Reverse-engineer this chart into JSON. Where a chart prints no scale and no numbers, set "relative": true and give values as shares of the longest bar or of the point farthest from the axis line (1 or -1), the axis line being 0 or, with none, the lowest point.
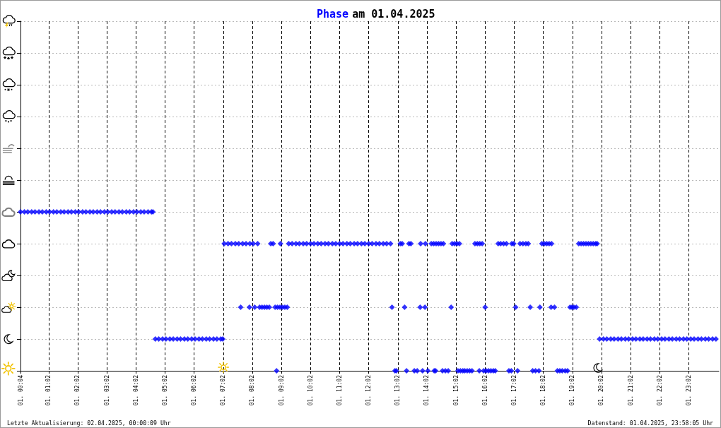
{
  "chart_data": {
    "type": "scatter",
    "title": "am 01.04.2025",
    "relative": true,
    "marker": "diamond",
    "grid": true,
    "tick_labels": "x",
    "xlim": [
      "2025-04-01T00:04",
      "2025-04-02T00:04"
    ],
    "xticks": [
      {
        "value": "2025-04-01T00:04",
        "label": "01. 00:04"
      },
      {
        "value": "2025-04-01T01:02",
        "label": "01. 01:02"
      },
      {
        "value": "2025-04-01T02:02",
        "label": "01. 02:02"
      },
      {
        "value": "2025-04-01T03:02",
        "label": "01. 03:02"
      },
      {
        "value": "2025-04-01T04:02",
        "label": "01. 04:02"
      },
      {
        "value": "2025-04-01T05:02",
        "label": "01. 05:02"
      },
      {
        "value": "2025-04-01T06:02",
        "label": "01. 06:02"
      },
      {
        "value": "2025-04-01T07:02",
        "label": "01. 07:02"
      },
      {
        "value": "2025-04-01T08:02",
        "label": "01. 08:02"
      },
      {
        "value": "2025-04-01T09:02",
        "label": "01. 09:02"
      },
      {
        "value": "2025-04-01T10:02",
        "label": "01. 10:02"
      },
      {
        "value": "2025-04-01T11:02",
        "label": "01. 11:02"
      },
      {
        "value": "2025-04-01T12:02",
        "label": "01. 12:02"
      },
      {
        "value": "2025-04-01T13:02",
        "label": "01. 13:02"
      },
      {
        "value": "2025-04-01T14:02",
        "label": "01. 14:02"
      },
      {
        "value": "2025-04-01T15:02",
        "label": "01. 15:02"
      },
      {
        "value": "2025-04-01T16:02",
        "label": "01. 16:02"
      },
      {
        "value": "2025-04-01T17:02",
        "label": "01. 17:02"
      },
      {
        "value": "2025-04-01T18:02",
        "label": "01. 18:02"
      },
      {
        "value": "2025-04-01T19:02",
        "label": "01. 19:02"
      },
      {
        "value": "2025-04-01T20:02",
        "label": "01. 20:02"
      },
      {
        "value": "2025-04-01T21:02",
        "label": "01. 21:02"
      },
      {
        "value": "2025-04-01T22:02",
        "label": "01. 22:02"
      },
      {
        "value": "2025-04-01T23:02",
        "label": "01. 23:02"
      }
    ],
    "x": [
      "2025-04-01T00:04",
      "2025-04-01T00:12",
      "2025-04-01T00:19",
      "2025-04-01T00:27",
      "2025-04-01T00:34",
      "2025-04-01T00:42",
      "2025-04-01T00:49",
      "2025-04-01T00:57",
      "2025-04-01T01:04",
      "2025-04-01T01:12",
      "2025-04-01T01:19",
      "2025-04-01T01:27",
      "2025-04-01T01:34",
      "2025-04-01T01:42",
      "2025-04-01T01:49",
      "2025-04-01T01:57",
      "2025-04-01T02:04",
      "2025-04-01T02:12",
      "2025-04-01T02:19",
      "2025-04-01T02:27",
      "2025-04-01T02:34",
      "2025-04-01T02:42",
      "2025-04-01T02:49",
      "2025-04-01T02:57",
      "2025-04-01T03:04",
      "2025-04-01T03:12",
      "2025-04-01T03:19",
      "2025-04-01T03:27",
      "2025-04-01T03:34",
      "2025-04-01T03:42",
      "2025-04-01T03:49",
      "2025-04-01T03:57",
      "2025-04-01T04:04",
      "2025-04-01T04:12",
      "2025-04-01T04:19",
      "2025-04-01T04:27",
      "2025-04-01T04:34",
      "2025-04-01T04:37",
      "2025-04-01T04:42",
      "2025-04-01T04:49",
      "2025-04-01T04:57",
      "2025-04-01T05:04",
      "2025-04-01T05:12",
      "2025-04-01T05:19",
      "2025-04-01T05:27",
      "2025-04-01T05:34",
      "2025-04-01T05:42",
      "2025-04-01T05:49",
      "2025-04-01T05:57",
      "2025-04-01T06:04",
      "2025-04-01T06:12",
      "2025-04-01T06:19",
      "2025-04-01T06:27",
      "2025-04-01T06:34",
      "2025-04-01T06:42",
      "2025-04-01T06:49",
      "2025-04-01T06:57",
      "2025-04-01T07:01",
      "2025-04-01T19:58",
      "2025-04-01T20:06",
      "2025-04-01T20:13",
      "2025-04-01T20:21",
      "2025-04-01T20:28",
      "2025-04-01T20:36",
      "2025-04-01T20:43",
      "2025-04-01T20:51",
      "2025-04-01T20:58",
      "2025-04-01T21:06",
      "2025-04-01T21:13",
      "2025-04-01T21:21",
      "2025-04-01T21:28",
      "2025-04-01T21:36",
      "2025-04-01T21:43",
      "2025-04-01T21:51",
      "2025-04-01T21:58",
      "2025-04-01T22:06",
      "2025-04-01T22:13",
      "2025-04-01T22:21",
      "2025-04-01T22:28",
      "2025-04-01T22:36",
      "2025-04-01T22:43",
      "2025-04-01T22:51",
      "2025-04-01T22:58",
      "2025-04-01T23:06",
      "2025-04-01T23:13",
      "2025-04-01T23:21",
      "2025-04-01T23:28",
      "2025-04-01T23:36",
      "2025-04-01T23:43",
      "2025-04-01T23:51",
      "2025-04-01T23:58",
      "2025-04-01T07:04",
      "2025-04-01T07:12",
      "2025-04-01T07:19",
      "2025-04-01T07:27",
      "2025-04-01T07:34",
      "2025-04-01T07:42",
      "2025-04-01T07:49",
      "2025-04-01T07:57",
      "2025-04-01T08:04",
      "2025-04-01T08:13",
      "2025-04-01T08:40",
      "2025-04-01T08:45",
      "2025-04-01T09:00",
      "2025-04-01T09:17",
      "2025-04-01T09:24",
      "2025-04-01T09:32",
      "2025-04-01T09:39",
      "2025-04-01T09:47",
      "2025-04-01T09:54",
      "2025-04-01T10:02",
      "2025-04-01T10:09",
      "2025-04-01T10:17",
      "2025-04-01T10:24",
      "2025-04-01T10:32",
      "2025-04-01T10:39",
      "2025-04-01T10:47",
      "2025-04-01T10:54",
      "2025-04-01T11:02",
      "2025-04-01T11:09",
      "2025-04-01T11:17",
      "2025-04-01T11:24",
      "2025-04-01T11:32",
      "2025-04-01T11:39",
      "2025-04-01T11:47",
      "2025-04-01T11:54",
      "2025-04-01T12:02",
      "2025-04-01T12:09",
      "2025-04-01T12:17",
      "2025-04-01T12:24",
      "2025-04-01T12:32",
      "2025-04-01T12:39",
      "2025-04-01T12:47",
      "2025-04-01T13:07",
      "2025-04-01T13:11",
      "2025-04-01T13:25",
      "2025-04-01T13:29",
      "2025-04-01T13:49",
      "2025-04-01T13:59",
      "2025-04-01T14:11",
      "2025-04-01T14:16",
      "2025-04-01T14:21",
      "2025-04-01T14:26",
      "2025-04-01T14:31",
      "2025-04-01T14:36",
      "2025-04-01T14:54",
      "2025-04-01T14:59",
      "2025-04-01T15:04",
      "2025-04-01T15:09",
      "2025-04-01T15:41",
      "2025-04-01T15:46",
      "2025-04-01T15:51",
      "2025-04-01T15:56",
      "2025-04-01T16:29",
      "2025-04-01T16:34",
      "2025-04-01T16:40",
      "2025-04-01T16:46",
      "2025-04-01T16:57",
      "2025-04-01T17:01",
      "2025-04-01T17:14",
      "2025-04-01T17:20",
      "2025-04-01T17:26",
      "2025-04-01T17:31",
      "2025-04-01T17:59",
      "2025-04-01T18:04",
      "2025-04-01T18:09",
      "2025-04-01T18:14",
      "2025-04-01T18:19",
      "2025-04-01T19:15",
      "2025-04-01T19:20",
      "2025-04-01T19:25",
      "2025-04-01T19:30",
      "2025-04-01T19:35",
      "2025-04-01T19:40",
      "2025-04-01T19:45",
      "2025-04-01T19:50",
      "2025-04-01T19:53",
      "2025-04-01T07:38",
      "2025-04-01T07:56",
      "2025-04-01T08:07",
      "2025-04-01T08:17",
      "2025-04-01T08:22",
      "2025-04-01T08:27",
      "2025-04-01T08:32",
      "2025-04-01T08:37",
      "2025-04-01T08:49",
      "2025-04-01T08:54",
      "2025-04-01T08:59",
      "2025-04-01T09:04",
      "2025-04-01T09:09",
      "2025-04-01T09:14",
      "2025-04-01T12:50",
      "2025-04-01T13:16",
      "2025-04-01T13:48",
      "2025-04-01T13:58",
      "2025-04-01T14:52",
      "2025-04-01T16:02",
      "2025-04-01T17:05",
      "2025-04-01T17:35",
      "2025-04-01T17:55",
      "2025-04-01T18:18",
      "2025-04-01T18:25",
      "2025-04-01T18:57",
      "2025-04-01T19:01",
      "2025-04-01T19:05",
      "2025-04-01T19:10",
      "2025-04-01T08:52",
      "2025-04-01T12:56",
      "2025-04-01T12:59",
      "2025-04-01T13:20",
      "2025-04-01T13:36",
      "2025-04-01T13:42",
      "2025-04-01T13:53",
      "2025-04-01T14:04",
      "2025-04-01T14:17",
      "2025-04-01T14:20",
      "2025-04-01T14:34",
      "2025-04-01T14:40",
      "2025-04-01T14:46",
      "2025-04-01T15:06",
      "2025-04-01T15:11",
      "2025-04-01T15:16",
      "2025-04-01T15:20",
      "2025-04-01T15:25",
      "2025-04-01T15:30",
      "2025-04-01T15:35",
      "2025-04-01T15:50",
      "2025-04-01T15:59",
      "2025-04-01T16:04",
      "2025-04-01T16:09",
      "2025-04-01T16:14",
      "2025-04-01T16:19",
      "2025-04-01T16:23",
      "2025-04-01T16:51",
      "2025-04-01T16:56",
      "2025-04-01T17:09",
      "2025-04-01T17:40",
      "2025-04-01T17:46",
      "2025-04-01T17:53",
      "2025-04-01T18:31",
      "2025-04-01T18:36",
      "2025-04-01T18:41",
      "2025-04-01T18:47",
      "2025-04-01T18:52"
    ],
    "series": [
      {
        "name": "Phase",
        "color": "#0000ff",
        "values": [
          1,
          1,
          1,
          1,
          1,
          1,
          1,
          1,
          1,
          1,
          1,
          1,
          1,
          1,
          1,
          1,
          1,
          1,
          1,
          1,
          1,
          1,
          1,
          1,
          1,
          1,
          1,
          1,
          1,
          1,
          1,
          1,
          1,
          1,
          1,
          1,
          1,
          1,
          0.2,
          0.2,
          0.2,
          0.2,
          0.2,
          0.2,
          0.2,
          0.2,
          0.2,
          0.2,
          0.2,
          0.2,
          0.2,
          0.2,
          0.2,
          0.2,
          0.2,
          0.2,
          0.2,
          0.2,
          0.2,
          0.2,
          0.2,
          0.2,
          0.2,
          0.2,
          0.2,
          0.2,
          0.2,
          0.2,
          0.2,
          0.2,
          0.2,
          0.2,
          0.2,
          0.2,
          0.2,
          0.2,
          0.2,
          0.2,
          0.2,
          0.2,
          0.2,
          0.2,
          0.2,
          0.2,
          0.2,
          0.2,
          0.2,
          0.2,
          0.2,
          0.2,
          0.2,
          0.8,
          0.8,
          0.8,
          0.8,
          0.8,
          0.8,
          0.8,
          0.8,
          0.8,
          0.8,
          0.8,
          0.8,
          0.8,
          0.8,
          0.8,
          0.8,
          0.8,
          0.8,
          0.8,
          0.8,
          0.8,
          0.8,
          0.8,
          0.8,
          0.8,
          0.8,
          0.8,
          0.8,
          0.8,
          0.8,
          0.8,
          0.8,
          0.8,
          0.8,
          0.8,
          0.8,
          0.8,
          0.8,
          0.8,
          0.8,
          0.8,
          0.8,
          0.8,
          0.8,
          0.8,
          0.8,
          0.8,
          0.8,
          0.8,
          0.8,
          0.8,
          0.8,
          0.8,
          0.8,
          0.8,
          0.8,
          0.8,
          0.8,
          0.8,
          0.8,
          0.8,
          0.8,
          0.8,
          0.8,
          0.8,
          0.8,
          0.8,
          0.8,
          0.8,
          0.8,
          0.8,
          0.8,
          0.8,
          0.8,
          0.8,
          0.8,
          0.8,
          0.8,
          0.8,
          0.8,
          0.8,
          0.8,
          0.8,
          0.8,
          0.8,
          0.8,
          0.4,
          0.4,
          0.4,
          0.4,
          0.4,
          0.4,
          0.4,
          0.4,
          0.4,
          0.4,
          0.4,
          0.4,
          0.4,
          0.4,
          0.4,
          0.4,
          0.4,
          0.4,
          0.4,
          0.4,
          0.4,
          0.4,
          0.4,
          0.4,
          0.4,
          0.4,
          0.4,
          0.4,
          0.4,
          0,
          0,
          0,
          0,
          0,
          0,
          0,
          0,
          0,
          0,
          0,
          0,
          0,
          0,
          0,
          0,
          0,
          0,
          0,
          0,
          0,
          0,
          0,
          0,
          0,
          0,
          0,
          0,
          0,
          0,
          0,
          0,
          0,
          0,
          0,
          0,
          0,
          0
        ]
      }
    ],
    "annotations": [
      "Letzte Aktualisierung: 02.04.2025, 00:00:09 Uhr",
      "Datenstand: 01.04.2025, 23:58:05 Uhr"
    ]
  }
}
